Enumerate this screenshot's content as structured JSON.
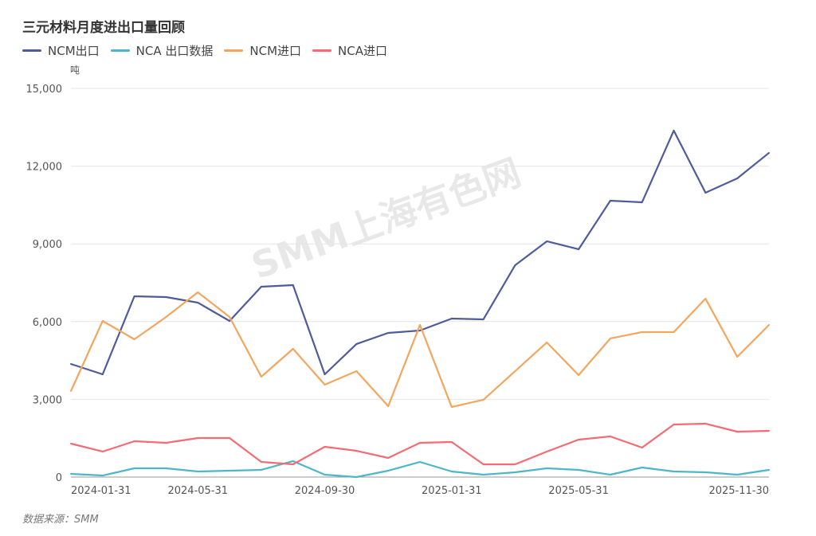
{
  "chart_data": {
    "type": "line",
    "title": "三元材料月度进出口量回顾",
    "ylabel": "吨",
    "ylim": [
      0,
      15000
    ],
    "yticks": [
      0,
      3000,
      6000,
      9000,
      12000,
      15000
    ],
    "ytick_labels": [
      "0",
      "3,000",
      "6,000",
      "9,000",
      "12,000",
      "15,000"
    ],
    "grid": true,
    "legend_position": "top-left",
    "x": [
      "2024-01-31",
      "2024-02-29",
      "2024-03-31",
      "2024-04-30",
      "2024-05-31",
      "2024-06-30",
      "2024-07-31",
      "2024-08-31",
      "2024-09-30",
      "2024-10-31",
      "2024-11-30",
      "2024-12-31",
      "2025-01-31",
      "2025-02-28",
      "2025-03-31",
      "2025-04-30",
      "2025-05-31",
      "2025-06-30",
      "2025-07-31",
      "2025-08-31",
      "2025-09-30",
      "2025-10-31",
      "2025-11-30"
    ],
    "xtick_indices": [
      0,
      4,
      8,
      12,
      16,
      22
    ],
    "series": [
      {
        "name": "NCM出口",
        "color": "#4f5b9a",
        "values": [
          4365,
          3965,
          6978,
          6947,
          6732,
          6025,
          7347,
          7408,
          3965,
          5134,
          5564,
          5656,
          6117,
          6087,
          8177,
          9099,
          8792,
          10667,
          10605,
          13372,
          10974,
          11528,
          12512
        ]
      },
      {
        "name": "NCA 出口数据",
        "color": "#4db6ca",
        "values": [
          123,
          61,
          338,
          338,
          215,
          246,
          277,
          615,
          92,
          0,
          246,
          584,
          215,
          92,
          184,
          338,
          277,
          92,
          369,
          215,
          184,
          92,
          277
        ]
      },
      {
        "name": "NCM进口",
        "color": "#f2a65e",
        "values": [
          3320,
          6025,
          5318,
          6179,
          7132,
          6179,
          3873,
          4949,
          3566,
          4089,
          2736,
          5871,
          2705,
          2982,
          4089,
          5195,
          3935,
          5349,
          5595,
          5595,
          6886,
          4642,
          5871
        ]
      },
      {
        "name": "NCA进口",
        "color": "#f56b74",
        "values": [
          1291,
          984,
          1383,
          1322,
          1506,
          1506,
          584,
          492,
          1168,
          1014,
          738,
          1322,
          1353,
          492,
          492,
          984,
          1445,
          1568,
          1137,
          2029,
          2060,
          1752,
          1783
        ]
      }
    ]
  },
  "watermark": "SMM上海有色网",
  "source": "数据来源：SMM"
}
